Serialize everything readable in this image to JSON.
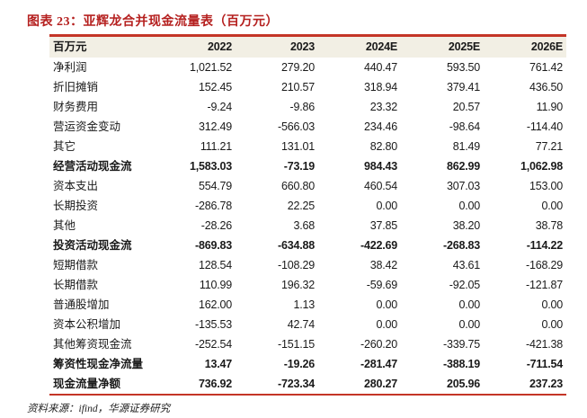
{
  "title": "图表 23：亚辉龙合并现金流量表（百万元）",
  "source_note": "资料来源：ifind，华源证券研究",
  "colors": {
    "accent_red": "#b5201f",
    "rule_red": "#c43527",
    "header_bg": "#f2efe4"
  },
  "chart_data": {
    "type": "table",
    "title": "亚辉龙合并现金流量表（百万元）",
    "unit": "百万元",
    "columns": [
      "百万元",
      "2022",
      "2023",
      "2024E",
      "2025E",
      "2026E"
    ],
    "rows": [
      {
        "label": "净利润",
        "values": [
          "1,021.52",
          "279.20",
          "440.47",
          "593.50",
          "761.42"
        ],
        "bold": false
      },
      {
        "label": "折旧摊销",
        "values": [
          "152.45",
          "210.57",
          "318.94",
          "379.41",
          "436.50"
        ],
        "bold": false
      },
      {
        "label": "财务费用",
        "values": [
          "-9.24",
          "-9.86",
          "23.32",
          "20.57",
          "11.90"
        ],
        "bold": false
      },
      {
        "label": "营运资金变动",
        "values": [
          "312.49",
          "-566.03",
          "234.46",
          "-98.64",
          "-114.40"
        ],
        "bold": false
      },
      {
        "label": "其它",
        "values": [
          "111.21",
          "131.01",
          "82.80",
          "81.49",
          "77.21"
        ],
        "bold": false
      },
      {
        "label": "经营活动现金流",
        "values": [
          "1,583.03",
          "-73.19",
          "984.43",
          "862.99",
          "1,062.98"
        ],
        "bold": true
      },
      {
        "label": "资本支出",
        "values": [
          "554.79",
          "660.80",
          "460.54",
          "307.03",
          "153.00"
        ],
        "bold": false
      },
      {
        "label": "长期投资",
        "values": [
          "-286.78",
          "22.25",
          "0.00",
          "0.00",
          "0.00"
        ],
        "bold": false
      },
      {
        "label": "其他",
        "values": [
          "-28.26",
          "3.68",
          "37.85",
          "38.20",
          "38.78"
        ],
        "bold": false
      },
      {
        "label": "投资活动现金流",
        "values": [
          "-869.83",
          "-634.88",
          "-422.69",
          "-268.83",
          "-114.22"
        ],
        "bold": true
      },
      {
        "label": "短期借款",
        "values": [
          "128.54",
          "-108.29",
          "38.42",
          "43.61",
          "-168.29"
        ],
        "bold": false
      },
      {
        "label": "长期借款",
        "values": [
          "110.99",
          "196.32",
          "-59.69",
          "-92.05",
          "-121.87"
        ],
        "bold": false
      },
      {
        "label": "普通股增加",
        "values": [
          "162.00",
          "1.13",
          "0.00",
          "0.00",
          "0.00"
        ],
        "bold": false
      },
      {
        "label": "资本公积增加",
        "values": [
          "-135.53",
          "42.74",
          "0.00",
          "0.00",
          "0.00"
        ],
        "bold": false
      },
      {
        "label": "其他筹资现金流",
        "values": [
          "-252.54",
          "-151.15",
          "-260.20",
          "-339.75",
          "-421.38"
        ],
        "bold": false
      },
      {
        "label": "筹资性现金净流量",
        "values": [
          "13.47",
          "-19.26",
          "-281.47",
          "-388.19",
          "-711.54"
        ],
        "bold": true
      },
      {
        "label": "现金流量净额",
        "values": [
          "736.92",
          "-723.34",
          "280.27",
          "205.96",
          "237.23"
        ],
        "bold": true
      }
    ]
  }
}
